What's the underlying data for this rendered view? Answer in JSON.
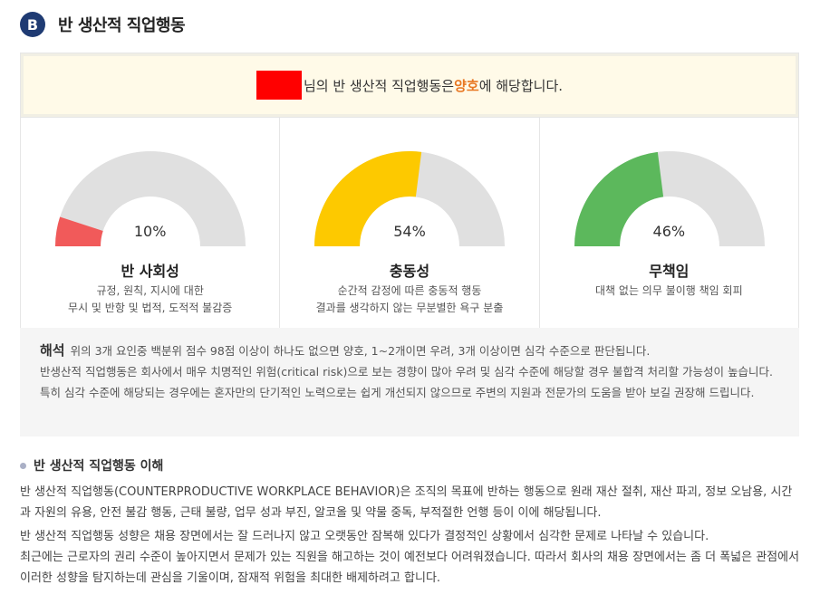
{
  "section": {
    "badge": "B",
    "title": "반 생산적 직업행동"
  },
  "summary": {
    "text_before": "님의 반 생산적 직업행동은 ",
    "result": "양호",
    "text_after": "에 해당합니다."
  },
  "colors": {
    "badge": "#1f3b73",
    "result": "#e87722",
    "gauge_track": "#e0e0e0",
    "summary_bg": "#fffae8"
  },
  "gauges": [
    {
      "value": 10,
      "value_label": "10%",
      "label": "반 사회성",
      "desc_line1": "규정, 원칙, 지시에 대한",
      "desc_line2": "무시 및 반항 및 법적, 도적적 불감증",
      "color": "#f15a5a"
    },
    {
      "value": 54,
      "value_label": "54%",
      "label": "충동성",
      "desc_line1": "순간적 감정에 따른 충동적 행동",
      "desc_line2": "결과를 생각하지 않는 무분별한 욕구 분출",
      "color": "#fdc900"
    },
    {
      "value": 46,
      "value_label": "46%",
      "label": "무책임",
      "desc_line1": "대책 없는 의무 불이행 책임 회피",
      "desc_line2": "",
      "color": "#5cb85c"
    }
  ],
  "interpretation": {
    "title": "해석",
    "line1": "위의 3개 요인중 백분위 점수 98점 이상이 하나도 없으면 양호, 1~2개이면 우려, 3개 이상이면 심각 수준으로 판단됩니다.",
    "line2": "반생산적 직업행동은 회사에서 매우 치명적인 위험(critical risk)으로 보는 경향이 많아 우려 및 심각 수준에 해당할 경우 불합격 처리할 가능성이 높습니다. 특히 심각 수준에 해당되는 경우에는 혼자만의 단기적인 노력으로는 쉽게 개선되지 않으므로 주변의 지원과 전문가의 도움을 받아 보길 권장해 드립니다."
  },
  "understanding": {
    "title": "반 생산적 직업행동 이해",
    "para1": "반 생산적 직업행동(COUNTERPRODUCTIVE WORKPLACE BEHAVIOR)은 조직의 목표에 반하는 행동으로 원래 재산 절취, 재산 파괴, 정보 오남용, 시간과 자원의 유용, 안전 불감 행동, 근태 불량, 업무 성과 부진, 알코올 및 약물 중독, 부적절한 언행 등이 이에 해당됩니다.",
    "para2_line1": "반 생산적 직업행동 성향은 채용 장면에서는 잘 드러나지 않고 오랫동안 잠복해 있다가 결정적인 상황에서 심각한 문제로 나타날 수 있습니다.",
    "para2_line2": "최근에는 근로자의 권리 수준이 높아지면서 문제가 있는 직원을 해고하는 것이 예전보다 어려워졌습니다. 따라서 회사의 채용 장면에서는 좀 더 폭넓은 관점에서 이러한 성향을 탐지하는데 관심을 기울이며, 잠재적 위험을 최대한 배제하려고 합니다."
  }
}
